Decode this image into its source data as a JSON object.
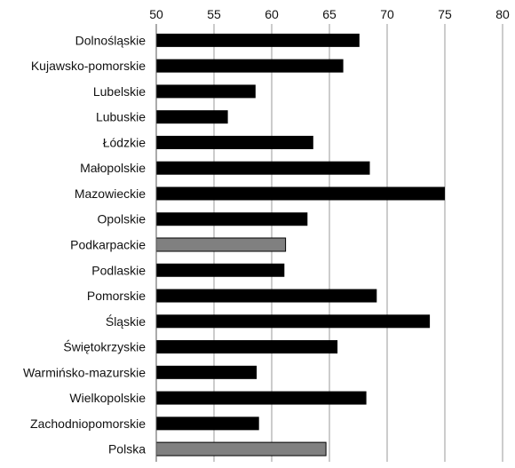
{
  "chart_data": {
    "type": "bar",
    "orientation": "horizontal",
    "title": "",
    "xlabel": "",
    "ylabel": "",
    "xlim": [
      50,
      80
    ],
    "xticks": [
      50,
      55,
      60,
      65,
      70,
      75,
      80
    ],
    "xaxis_position": "top",
    "grid": true,
    "legend": "none",
    "categories": [
      "Dolnośląskie",
      "Kujawsko-pomorskie",
      "Lubelskie",
      "Lubuskie",
      "Łódzkie",
      "Małopolskie",
      "Mazowieckie",
      "Opolskie",
      "Podkarpackie",
      "Podlaskie",
      "Pomorskie",
      "Śląskie",
      "Świętokrzyskie",
      "Warmińsko-mazurskie",
      "Wielkopolskie",
      "Zachodniopomorskie",
      "Polska"
    ],
    "values": [
      67.6,
      66.2,
      58.6,
      56.2,
      63.6,
      68.5,
      75.0,
      63.1,
      61.2,
      61.1,
      69.1,
      73.7,
      65.7,
      58.7,
      68.2,
      58.9,
      64.7
    ],
    "highlighted": [
      "Podkarpackie",
      "Polska"
    ],
    "colors": {
      "default": "#000000",
      "highlight": "#808080",
      "grid": "#9a9a9a"
    }
  }
}
